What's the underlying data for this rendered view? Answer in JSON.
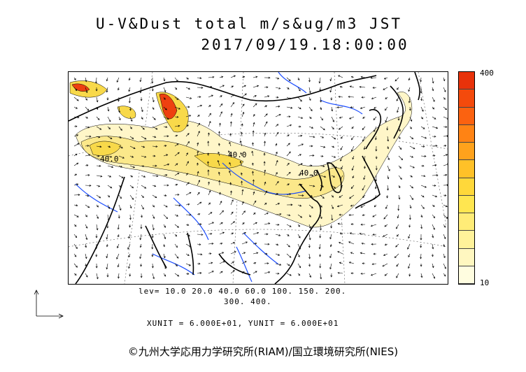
{
  "title": {
    "line1": "U-V&Dust total m/s&ug/m3 JST",
    "line2": "2017/09/19.18:00:00"
  },
  "colorbar": {
    "max_label": "400",
    "min_label": "10",
    "colors": [
      "#fffde0",
      "#fff7c0",
      "#fff29a",
      "#ffec77",
      "#ffe650",
      "#ffd83a",
      "#ffc128",
      "#ffa21c",
      "#ff8314",
      "#fb6210",
      "#f44a0c",
      "#e8320a"
    ]
  },
  "contour_labels": [
    "40.0",
    "40.0",
    "40.0"
  ],
  "levels": {
    "line1": "lev= 10.0 20.0 40.0 60.0 100. 150. 200.",
    "line2": "300. 400."
  },
  "units": "XUNIT = 6.000E+01, YUNIT = 6.000E+01",
  "copyright": "©九州大学応用力学研究所(RIAM)/国立環境研究所(NIES)",
  "colors": {
    "coast": "#000000",
    "rivers": "#1a4cff",
    "dust_low": "#fff6c8",
    "dust_mid": "#f8d94a",
    "dust_high": "#ee4010"
  }
}
